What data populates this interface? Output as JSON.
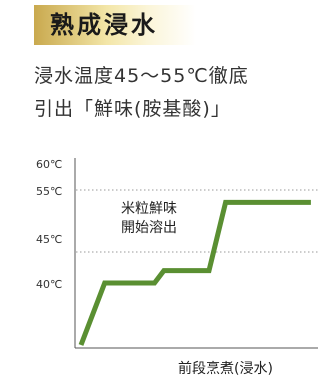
{
  "header": {
    "title": "熟成浸水"
  },
  "description": {
    "line1": "浸水温度45〜55℃徹底",
    "line2": "引出「鮮味(胺基酸)」"
  },
  "chart_data": {
    "type": "line",
    "title": "",
    "xlabel": "前段烹煮(浸水)",
    "ylabel": "",
    "y_tick_labels": [
      "60℃",
      "55℃",
      "45℃",
      "40℃"
    ],
    "y_ticks": [
      60,
      55,
      45,
      40
    ],
    "ylim": [
      30,
      60
    ],
    "xlim": [
      0,
      10
    ],
    "grid": "dotted reference lines at 55℃ and 45℃",
    "annotation": [
      "米粒鮮味",
      "開始溶出"
    ],
    "series": [
      {
        "color": "#5a8f32",
        "x": [
          0,
          1,
          3.1,
          3.5,
          5.4,
          6.1
        ],
        "y": [
          30,
          40,
          40,
          42,
          42,
          53
        ]
      }
    ],
    "line_end_x": 9.7
  }
}
